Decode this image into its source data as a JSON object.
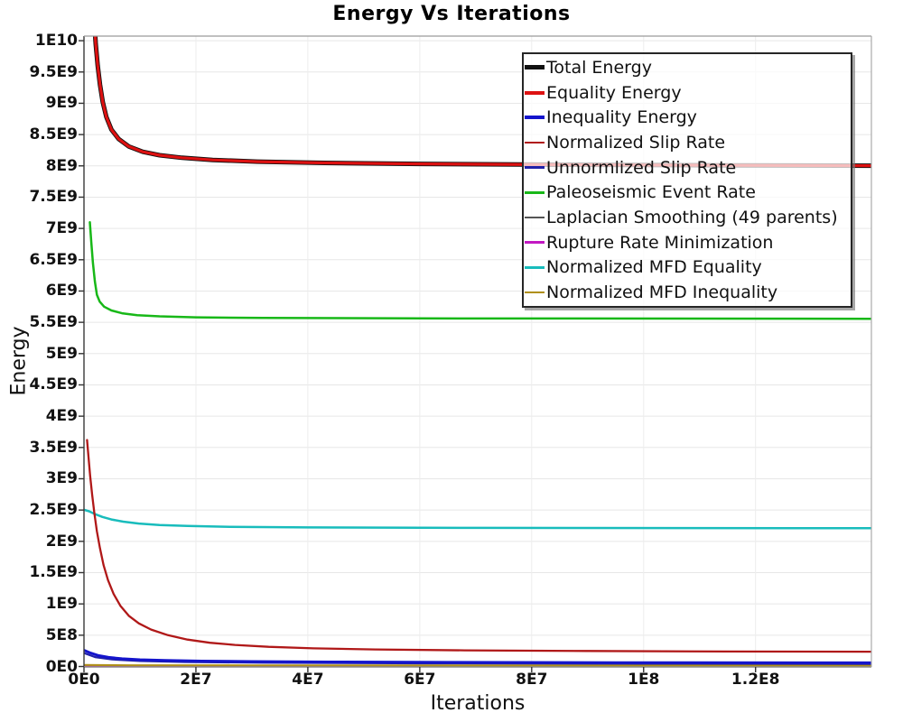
{
  "title": "Energy Vs Iterations",
  "chart_data": {
    "type": "line",
    "title": "Energy Vs Iterations",
    "xlabel": "Iterations",
    "ylabel": "Energy",
    "x_unit_note": "series x values are iterations in millions (1e6)",
    "y_unit_note": "series y values are energy in billions (1e9)",
    "xlim_e6": [
      0,
      140.7
    ],
    "ylim_e9": [
      0,
      10.08
    ],
    "grid": true,
    "legend_position": "upper-right-inside",
    "x_ticks": [
      {
        "v": 0,
        "label": "0E0"
      },
      {
        "v": 20,
        "label": "2E7"
      },
      {
        "v": 40,
        "label": "4E7"
      },
      {
        "v": 60,
        "label": "6E7"
      },
      {
        "v": 80,
        "label": "8E7"
      },
      {
        "v": 100,
        "label": "1E8"
      },
      {
        "v": 120,
        "label": "1.2E8"
      }
    ],
    "y_ticks": [
      {
        "v": 0,
        "label": "0E0"
      },
      {
        "v": 0.5,
        "label": "5E8"
      },
      {
        "v": 1,
        "label": "1E9"
      },
      {
        "v": 1.5,
        "label": "1.5E9"
      },
      {
        "v": 2,
        "label": "2E9"
      },
      {
        "v": 2.5,
        "label": "2.5E9"
      },
      {
        "v": 3,
        "label": "3E9"
      },
      {
        "v": 3.5,
        "label": "3.5E9"
      },
      {
        "v": 4,
        "label": "4E9"
      },
      {
        "v": 4.5,
        "label": "4.5E9"
      },
      {
        "v": 5,
        "label": "5E9"
      },
      {
        "v": 5.5,
        "label": "5.5E9"
      },
      {
        "v": 6,
        "label": "6E9"
      },
      {
        "v": 6.5,
        "label": "6.5E9"
      },
      {
        "v": 7,
        "label": "7E9"
      },
      {
        "v": 7.5,
        "label": "7.5E9"
      },
      {
        "v": 8,
        "label": "8E9"
      },
      {
        "v": 8.5,
        "label": "8.5E9"
      },
      {
        "v": 9,
        "label": "9E9"
      },
      {
        "v": 9.5,
        "label": "9.5E9"
      },
      {
        "v": 10,
        "label": "1E10"
      }
    ],
    "series": [
      {
        "name": "Total Energy",
        "color": "#111111",
        "line_width": 5,
        "swatch_height": 5,
        "z": 9,
        "points": [
          [
            1.85,
            10.3
          ],
          [
            2.1,
            9.95
          ],
          [
            2.45,
            9.6
          ],
          [
            2.85,
            9.3
          ],
          [
            3.35,
            9.02
          ],
          [
            4.0,
            8.78
          ],
          [
            4.9,
            8.58
          ],
          [
            6.2,
            8.43
          ],
          [
            8.0,
            8.31
          ],
          [
            10.5,
            8.225
          ],
          [
            13.5,
            8.17
          ],
          [
            17.5,
            8.13
          ],
          [
            23,
            8.095
          ],
          [
            31,
            8.068
          ],
          [
            43,
            8.048
          ],
          [
            60,
            8.032
          ],
          [
            85,
            8.018
          ],
          [
            115,
            8.008
          ],
          [
            140.7,
            8.002
          ]
        ]
      },
      {
        "name": "Equality Energy",
        "color": "#dd1111",
        "line_width": 3.2,
        "swatch_height": 4,
        "z": 10,
        "points": [
          [
            1.85,
            10.3
          ],
          [
            2.1,
            9.95
          ],
          [
            2.45,
            9.6
          ],
          [
            2.85,
            9.3
          ],
          [
            3.35,
            9.02
          ],
          [
            4.0,
            8.78
          ],
          [
            4.9,
            8.58
          ],
          [
            6.2,
            8.43
          ],
          [
            8.0,
            8.31
          ],
          [
            10.5,
            8.225
          ],
          [
            13.5,
            8.17
          ],
          [
            17.5,
            8.13
          ],
          [
            23,
            8.095
          ],
          [
            31,
            8.068
          ],
          [
            43,
            8.048
          ],
          [
            60,
            8.032
          ],
          [
            85,
            8.018
          ],
          [
            115,
            8.008
          ],
          [
            140.7,
            8.002
          ]
        ]
      },
      {
        "name": "Inequality Energy",
        "color": "#1414cc",
        "line_width": 3,
        "swatch_height": 4,
        "z": 8,
        "points": [
          [
            0,
            0.26
          ],
          [
            1.2,
            0.215
          ],
          [
            2.6,
            0.175
          ],
          [
            4.4,
            0.146
          ],
          [
            6.8,
            0.124
          ],
          [
            10,
            0.108
          ],
          [
            14.5,
            0.096
          ],
          [
            21,
            0.087
          ],
          [
            30,
            0.079
          ],
          [
            44,
            0.072
          ],
          [
            65,
            0.0665
          ],
          [
            95,
            0.062
          ],
          [
            140.7,
            0.059
          ]
        ]
      },
      {
        "name": "Normalized Slip Rate",
        "color": "#b01818",
        "line_width": 2.3,
        "swatch_height": 2.5,
        "z": 7,
        "points": [
          [
            0.55,
            3.62
          ],
          [
            0.8,
            3.35
          ],
          [
            1.1,
            3.05
          ],
          [
            1.45,
            2.75
          ],
          [
            1.85,
            2.45
          ],
          [
            2.3,
            2.16
          ],
          [
            2.85,
            1.89
          ],
          [
            3.5,
            1.62
          ],
          [
            4.3,
            1.38
          ],
          [
            5.3,
            1.16
          ],
          [
            6.5,
            0.97
          ],
          [
            8.0,
            0.81
          ],
          [
            9.8,
            0.69
          ],
          [
            12,
            0.59
          ],
          [
            15,
            0.5
          ],
          [
            18.5,
            0.43
          ],
          [
            22.5,
            0.38
          ],
          [
            27,
            0.345
          ],
          [
            33,
            0.315
          ],
          [
            41,
            0.29
          ],
          [
            52,
            0.272
          ],
          [
            68,
            0.258
          ],
          [
            90,
            0.248
          ],
          [
            115,
            0.24
          ],
          [
            140.7,
            0.236
          ]
        ]
      },
      {
        "name": "Unnormlized Slip Rate",
        "color": "#2020a8",
        "line_width": 2.2,
        "swatch_height": 2.5,
        "z": 4,
        "points": [
          [
            0,
            0.215
          ],
          [
            2,
            0.15
          ],
          [
            5,
            0.112
          ],
          [
            10,
            0.088
          ],
          [
            18,
            0.072
          ],
          [
            32,
            0.06
          ],
          [
            60,
            0.05
          ],
          [
            100,
            0.0445
          ],
          [
            140.7,
            0.042
          ]
        ]
      },
      {
        "name": "Paleoseismic Event Rate",
        "color": "#18b818",
        "line_width": 2.5,
        "swatch_height": 2.5,
        "z": 6,
        "points": [
          [
            1.05,
            7.1
          ],
          [
            1.3,
            6.78
          ],
          [
            1.6,
            6.45
          ],
          [
            1.95,
            6.15
          ],
          [
            2.3,
            5.94
          ],
          [
            2.8,
            5.83
          ],
          [
            3.6,
            5.75
          ],
          [
            4.9,
            5.69
          ],
          [
            6.8,
            5.645
          ],
          [
            9.5,
            5.615
          ],
          [
            13.5,
            5.595
          ],
          [
            20,
            5.58
          ],
          [
            32,
            5.57
          ],
          [
            60,
            5.562
          ],
          [
            140.7,
            5.556
          ]
        ]
      },
      {
        "name": "Laplacian Smoothing (49 parents)",
        "color": "#555555",
        "line_width": 2.2,
        "swatch_height": 2.5,
        "z": 1,
        "points": [
          [
            0,
            0.006
          ],
          [
            140.7,
            0.005
          ]
        ]
      },
      {
        "name": "Rupture Rate Minimization",
        "color": "#c218c2",
        "line_width": 2.2,
        "swatch_height": 2.5,
        "z": 2,
        "points": [
          [
            0,
            0.01
          ],
          [
            140.7,
            0.008
          ]
        ]
      },
      {
        "name": "Normalized MFD Equality",
        "color": "#18bcbc",
        "line_width": 2.5,
        "swatch_height": 2.5,
        "z": 5,
        "points": [
          [
            0,
            2.505
          ],
          [
            0.9,
            2.48
          ],
          [
            2.0,
            2.435
          ],
          [
            3.3,
            2.39
          ],
          [
            4.9,
            2.35
          ],
          [
            7.0,
            2.315
          ],
          [
            9.8,
            2.285
          ],
          [
            13.5,
            2.262
          ],
          [
            18.5,
            2.245
          ],
          [
            26,
            2.232
          ],
          [
            40,
            2.222
          ],
          [
            70,
            2.215
          ],
          [
            140.7,
            2.21
          ]
        ]
      },
      {
        "name": "Normalized MFD Inequality",
        "color": "#b09018",
        "line_width": 2.2,
        "swatch_height": 2.5,
        "z": 3,
        "points": [
          [
            0,
            0.024
          ],
          [
            8,
            0.019
          ],
          [
            30,
            0.017
          ],
          [
            140.7,
            0.015
          ]
        ]
      }
    ]
  },
  "layout_colors": {
    "grid_h": "#e7e7e7",
    "grid_v": "#ededed",
    "spine_left": "#3a3a3a",
    "spine_bottom": "#8a8a8a",
    "spine_top": "#9a9a9a",
    "spine_right": "#aaaaaa",
    "tick": "#333333"
  }
}
